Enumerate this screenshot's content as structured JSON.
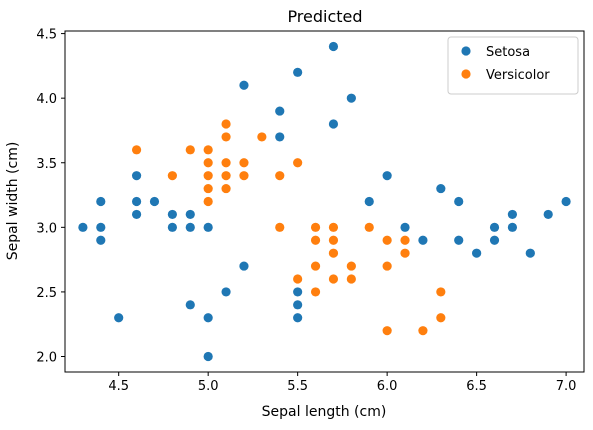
{
  "chart_data": {
    "type": "scatter",
    "title": "Predicted",
    "xlabel": "Sepal length (cm)",
    "ylabel": "Sepal width (cm)",
    "xlim": [
      4.2,
      7.1
    ],
    "ylim": [
      1.88,
      4.52
    ],
    "xticks": [
      4.5,
      5.0,
      5.5,
      6.0,
      6.5,
      7.0
    ],
    "xtick_labels": [
      "4.5",
      "5.0",
      "5.5",
      "6.0",
      "6.5",
      "7.0"
    ],
    "yticks": [
      2.0,
      2.5,
      3.0,
      3.5,
      4.0,
      4.5
    ],
    "ytick_labels": [
      "2.0",
      "2.5",
      "3.0",
      "3.5",
      "4.0",
      "4.5"
    ],
    "grid": false,
    "legend_position": "top-right",
    "series": [
      {
        "name": "Setosa",
        "color": "#1f77b4",
        "points": [
          [
            4.3,
            3.0
          ],
          [
            4.4,
            3.2
          ],
          [
            4.4,
            3.0
          ],
          [
            4.4,
            2.9
          ],
          [
            4.5,
            2.3
          ],
          [
            4.6,
            3.4
          ],
          [
            4.6,
            3.2
          ],
          [
            4.6,
            3.1
          ],
          [
            4.7,
            3.2
          ],
          [
            4.8,
            3.1
          ],
          [
            4.8,
            3.0
          ],
          [
            4.9,
            3.1
          ],
          [
            4.9,
            3.0
          ],
          [
            4.9,
            2.4
          ],
          [
            5.0,
            3.0
          ],
          [
            5.0,
            2.3
          ],
          [
            5.0,
            2.0
          ],
          [
            5.1,
            2.5
          ],
          [
            5.2,
            4.1
          ],
          [
            5.2,
            2.7
          ],
          [
            5.4,
            3.9
          ],
          [
            5.4,
            3.7
          ],
          [
            5.5,
            4.2
          ],
          [
            5.5,
            2.5
          ],
          [
            5.5,
            2.4
          ],
          [
            5.5,
            2.3
          ],
          [
            5.7,
            4.4
          ],
          [
            5.7,
            3.8
          ],
          [
            5.8,
            4.0
          ],
          [
            5.9,
            3.2
          ],
          [
            6.0,
            3.4
          ],
          [
            6.1,
            3.0
          ],
          [
            6.2,
            2.9
          ],
          [
            6.3,
            3.3
          ],
          [
            6.4,
            3.2
          ],
          [
            6.4,
            2.9
          ],
          [
            6.5,
            2.8
          ],
          [
            6.6,
            3.0
          ],
          [
            6.6,
            2.9
          ],
          [
            6.7,
            3.1
          ],
          [
            6.7,
            3.0
          ],
          [
            6.8,
            2.8
          ],
          [
            6.9,
            3.1
          ],
          [
            7.0,
            3.2
          ]
        ]
      },
      {
        "name": "Versicolor",
        "color": "#ff7f0e",
        "points": [
          [
            4.6,
            3.6
          ],
          [
            4.8,
            3.4
          ],
          [
            4.9,
            3.6
          ],
          [
            5.0,
            3.6
          ],
          [
            5.0,
            3.5
          ],
          [
            5.0,
            3.4
          ],
          [
            5.0,
            3.3
          ],
          [
            5.0,
            3.2
          ],
          [
            5.1,
            3.8
          ],
          [
            5.1,
            3.7
          ],
          [
            5.1,
            3.5
          ],
          [
            5.1,
            3.4
          ],
          [
            5.1,
            3.3
          ],
          [
            5.2,
            3.5
          ],
          [
            5.2,
            3.4
          ],
          [
            5.3,
            3.7
          ],
          [
            5.4,
            3.4
          ],
          [
            5.4,
            3.0
          ],
          [
            5.5,
            3.5
          ],
          [
            5.5,
            2.6
          ],
          [
            5.6,
            3.0
          ],
          [
            5.6,
            2.9
          ],
          [
            5.6,
            2.7
          ],
          [
            5.6,
            2.5
          ],
          [
            5.7,
            3.0
          ],
          [
            5.7,
            2.9
          ],
          [
            5.7,
            2.8
          ],
          [
            5.7,
            2.6
          ],
          [
            5.8,
            2.7
          ],
          [
            5.8,
            2.6
          ],
          [
            5.9,
            3.0
          ],
          [
            6.0,
            2.9
          ],
          [
            6.0,
            2.7
          ],
          [
            6.0,
            2.2
          ],
          [
            6.1,
            2.9
          ],
          [
            6.1,
            2.8
          ],
          [
            6.2,
            2.2
          ],
          [
            6.3,
            2.5
          ],
          [
            6.3,
            2.3
          ]
        ]
      }
    ]
  }
}
